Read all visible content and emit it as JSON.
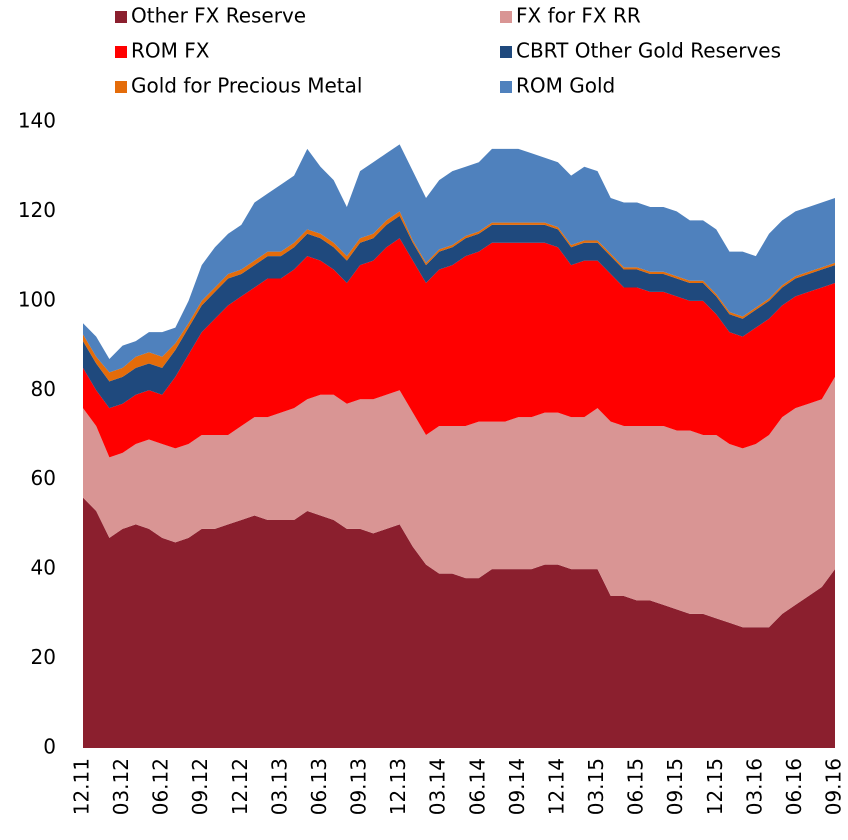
{
  "chart_data": {
    "type": "stacked_area",
    "categories": [
      "12.11",
      null,
      null,
      "03.12",
      null,
      null,
      "06.12",
      null,
      null,
      "09.12",
      null,
      null,
      "12.12",
      null,
      null,
      "03.13",
      null,
      null,
      "06.13",
      null,
      null,
      "09.13",
      null,
      null,
      "12.13",
      null,
      null,
      "03.14",
      null,
      null,
      "06.14",
      null,
      null,
      "09.14",
      null,
      null,
      "12.14",
      null,
      null,
      "03.15",
      null,
      null,
      "06.15",
      null,
      null,
      "09.15",
      null,
      null,
      "12.15",
      null,
      null,
      "03.16",
      null,
      null,
      "06.16",
      null,
      null,
      "09.16"
    ],
    "series": [
      {
        "name": "Other FX Reserve",
        "color": "#8b1f2e",
        "values": [
          56,
          53,
          47,
          49,
          50,
          49,
          47,
          46,
          47,
          49,
          49,
          50,
          51,
          52,
          51,
          51,
          51,
          53,
          52,
          51,
          49,
          49,
          48,
          49,
          50,
          45,
          41,
          39,
          39,
          38,
          38,
          40,
          40,
          40,
          40,
          41,
          41,
          40,
          40,
          40,
          34,
          34,
          33,
          33,
          32,
          31,
          30,
          30,
          29,
          28,
          27,
          27,
          27,
          30,
          32,
          34,
          36,
          40
        ]
      },
      {
        "name": "FX for FX RR",
        "color": "#d99594",
        "values": [
          20,
          19,
          18,
          17,
          18,
          20,
          21,
          21,
          21,
          21,
          21,
          20,
          21,
          22,
          23,
          24,
          25,
          25,
          27,
          28,
          28,
          29,
          30,
          30,
          30,
          30,
          29,
          33,
          33,
          34,
          35,
          33,
          33,
          34,
          34,
          34,
          34,
          34,
          34,
          36,
          39,
          38,
          39,
          39,
          40,
          40,
          41,
          40,
          41,
          40,
          40,
          41,
          43,
          44,
          44,
          43,
          42,
          43
        ]
      },
      {
        "name": "ROM FX",
        "color": "#ff0000",
        "values": [
          9,
          8,
          11,
          11,
          11,
          11,
          11,
          16,
          20,
          23,
          26,
          29,
          29,
          29,
          31,
          30,
          31,
          32,
          30,
          28,
          27,
          30,
          31,
          33,
          34,
          34,
          34,
          35,
          36,
          38,
          38,
          40,
          40,
          39,
          39,
          38,
          37,
          34,
          35,
          33,
          33,
          31,
          31,
          30,
          30,
          30,
          29,
          30,
          27,
          25,
          25,
          26,
          26,
          25,
          25,
          25,
          25,
          21
        ]
      },
      {
        "name": "CBRT Other Gold Reserves",
        "color": "#1f497d",
        "values": [
          6,
          6,
          6,
          6,
          6,
          6,
          6,
          6,
          6,
          6,
          6,
          6,
          5,
          5,
          5,
          5,
          5,
          5,
          5,
          5,
          5,
          5,
          5,
          5,
          5,
          4,
          4,
          4,
          4,
          4,
          4,
          4,
          4,
          4,
          4,
          4,
          4,
          4,
          4,
          4,
          4,
          4,
          4,
          4,
          4,
          4,
          4,
          4,
          4,
          4,
          4,
          4,
          4,
          4,
          4,
          4,
          4,
          4
        ]
      },
      {
        "name": "Gold for Precious Metal",
        "color": "#e46c0a",
        "values": [
          1.5,
          1.5,
          2,
          2,
          2.5,
          2.5,
          2.5,
          1.5,
          1,
          1,
          1,
          1,
          1,
          1,
          1,
          1,
          1,
          1,
          1,
          1,
          1,
          1,
          1,
          1,
          1,
          0.5,
          0.5,
          0.5,
          0.5,
          0.5,
          0.5,
          0.5,
          0.5,
          0.5,
          0.5,
          0.5,
          0.5,
          0.5,
          0.5,
          0.5,
          0.5,
          0.5,
          0.5,
          0.5,
          0.5,
          0.5,
          0.5,
          0.5,
          0.5,
          0.5,
          0.5,
          0.5,
          0.5,
          0.5,
          0.5,
          0.5,
          0.5,
          0.5
        ]
      },
      {
        "name": "ROM Gold",
        "color": "#4f81bd",
        "values": [
          2.5,
          4.5,
          3,
          5,
          3.5,
          4.5,
          5.5,
          3.5,
          5,
          8,
          9,
          9,
          10,
          13,
          13,
          15,
          15,
          18,
          15,
          14,
          11,
          15,
          16,
          15,
          15,
          15.5,
          14.5,
          15.5,
          16.5,
          15.5,
          15.5,
          16.5,
          16.5,
          16.5,
          15.5,
          14.5,
          14.5,
          15.5,
          16.5,
          15.5,
          12.5,
          14.5,
          14.5,
          14.5,
          14.5,
          14.5,
          13.5,
          13.5,
          14.5,
          13.5,
          14.5,
          11.5,
          14.5,
          14.5,
          14.5,
          14.5,
          14.5,
          14.5
        ]
      }
    ],
    "ylim": [
      0,
      140
    ],
    "yticks": [
      0,
      20,
      40,
      60,
      80,
      100,
      120,
      140
    ]
  }
}
